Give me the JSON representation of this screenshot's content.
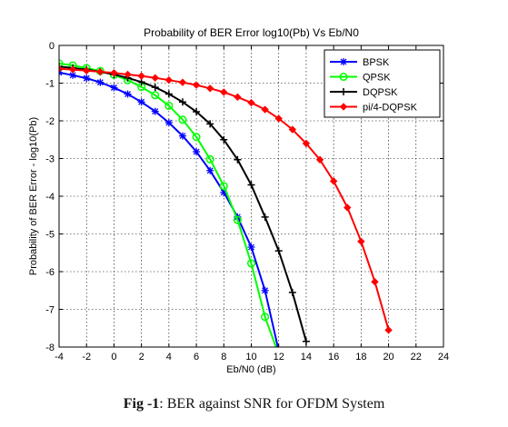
{
  "caption": {
    "label": "Fig -1",
    "text": ": BER against SNR for OFDM System"
  },
  "chart_data": {
    "type": "line",
    "title": "Probability of BER Error log10(Pb) Vs Eb/N0",
    "xlabel": "Eb/N0 (dB)",
    "ylabel": "Probability of BER Error - log10(Pb)",
    "xlim": [
      -4,
      24
    ],
    "ylim": [
      -8,
      0
    ],
    "xticks": [
      "-4",
      "-2",
      "0",
      "2",
      "4",
      "6",
      "8",
      "10",
      "12",
      "14",
      "16",
      "18",
      "20",
      "22",
      "24"
    ],
    "yticks": [
      "0",
      "-1",
      "-2",
      "-3",
      "-4",
      "-5",
      "-6",
      "-7",
      "-8"
    ],
    "grid": true,
    "legend_position": "top-right",
    "series": [
      {
        "name": "BPSK",
        "color": "#0000ff",
        "marker": "star",
        "x": [
          -4,
          -3,
          -2,
          -1,
          0,
          1,
          2,
          3,
          4,
          5,
          6,
          7,
          8,
          9,
          10,
          11,
          12
        ],
        "y": [
          -0.72,
          -0.79,
          -0.87,
          -0.98,
          -1.12,
          -1.29,
          -1.5,
          -1.75,
          -2.05,
          -2.4,
          -2.82,
          -3.32,
          -3.9,
          -4.55,
          -5.35,
          -6.5,
          -8.1
        ]
      },
      {
        "name": "QPSK",
        "color": "#00ff00",
        "marker": "circle",
        "x": [
          -4,
          -3,
          -2,
          -1,
          0,
          1,
          2,
          3,
          4,
          5,
          6,
          7,
          8,
          9,
          10,
          11,
          12
        ],
        "y": [
          -0.48,
          -0.53,
          -0.6,
          -0.68,
          -0.78,
          -0.92,
          -1.1,
          -1.32,
          -1.6,
          -1.97,
          -2.43,
          -3.02,
          -3.73,
          -4.63,
          -5.78,
          -7.2,
          -8.2
        ]
      },
      {
        "name": "DQPSK",
        "color": "#000000",
        "marker": "plus",
        "x": [
          -4,
          -3,
          -2,
          -1,
          0,
          1,
          2,
          3,
          4,
          5,
          6,
          7,
          8,
          9,
          10,
          11,
          12,
          13,
          14
        ],
        "y": [
          -0.56,
          -0.6,
          -0.64,
          -0.7,
          -0.77,
          -0.86,
          -0.97,
          -1.11,
          -1.29,
          -1.5,
          -1.76,
          -2.08,
          -2.5,
          -3.03,
          -3.7,
          -4.55,
          -5.45,
          -6.55,
          -7.85
        ]
      },
      {
        "name": "pi/4-DQPSK",
        "color": "#ff0000",
        "marker": "diamond",
        "x": [
          -4,
          -3,
          -2,
          -1,
          0,
          1,
          2,
          3,
          4,
          5,
          6,
          7,
          8,
          9,
          10,
          11,
          12,
          13,
          14,
          15,
          16,
          17,
          18,
          19,
          20
        ],
        "y": [
          -0.62,
          -0.64,
          -0.67,
          -0.7,
          -0.73,
          -0.77,
          -0.81,
          -0.86,
          -0.92,
          -0.98,
          -1.05,
          -1.14,
          -1.24,
          -1.37,
          -1.52,
          -1.7,
          -1.94,
          -2.23,
          -2.6,
          -3.03,
          -3.6,
          -4.3,
          -5.2,
          -6.27,
          -7.55
        ]
      }
    ]
  }
}
